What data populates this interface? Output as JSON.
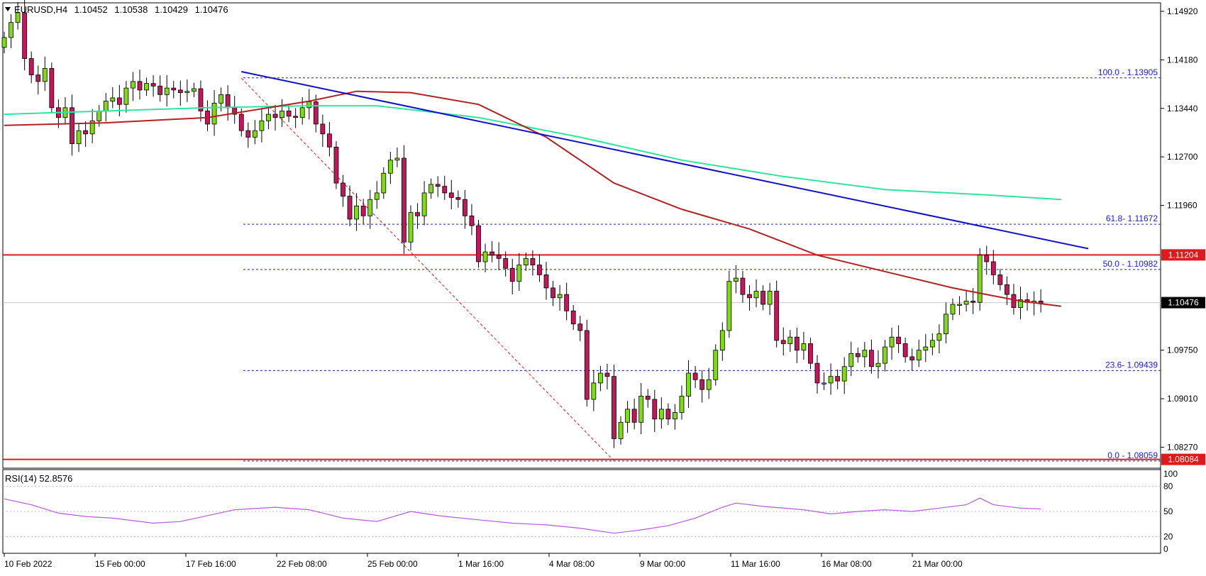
{
  "symbol_header": {
    "symbol": "EURUSD,H4",
    "open": "1.10452",
    "high": "1.10538",
    "low": "1.10429",
    "close": "1.10476"
  },
  "rsi_header": {
    "label": "RSI(14) 52.8576"
  },
  "colors": {
    "bull": "#7fdc14",
    "bear": "#c2185b",
    "ema_red": "#b22222",
    "ema_green": "#2ee59d",
    "trendline": "#1010c8",
    "fib": "#1a1adc",
    "resistance": "#e0191c",
    "rsi": "#b35ae0",
    "current_price": "#c8c8c8"
  },
  "price_axis": {
    "ticks": [
      "1.14920",
      "1.14180",
      "1.13440",
      "1.12700",
      "1.11960",
      "1.09750",
      "1.09010",
      "1.08270"
    ],
    "current_price_label": "1.10476",
    "resistance_label": "1.11204",
    "support_label": "1.08084"
  },
  "rsi_axis": {
    "ticks": [
      "100",
      "80",
      "50",
      "20",
      "0"
    ]
  },
  "time_axis": {
    "labels": [
      "10 Feb 2022",
      "15 Feb 00:00",
      "17 Feb 16:00",
      "22 Feb 08:00",
      "25 Feb 00:00",
      "1 Mar 16:00",
      "4 Mar 08:00",
      "9 Mar 00:00",
      "11 Mar 16:00",
      "16 Mar 08:00",
      "21 Mar 00:00"
    ]
  },
  "fib_labels": {
    "f100": "100.0 - 1.13905",
    "f618": "61.8- 1.11672",
    "f500": "50.0 - 1.10982",
    "f236": "23.6- 1.09439",
    "f0": "0.0 - 1.08059"
  },
  "chart_data": {
    "type": "candlestick",
    "instrument": "EURUSD",
    "timeframe": "H4",
    "y_range": [
      1.0795,
      1.1505
    ],
    "rsi_range": [
      0,
      100
    ],
    "fib_levels": [
      {
        "level": 100.0,
        "price": 1.13905
      },
      {
        "level": 61.8,
        "price": 1.11672
      },
      {
        "level": 50.0,
        "price": 1.10982
      },
      {
        "level": 23.6,
        "price": 1.09439
      },
      {
        "level": 0.0,
        "price": 1.08059
      }
    ],
    "horizontal_levels": [
      1.11204,
      1.08084
    ],
    "current_price": 1.10476,
    "rsi_value": 52.8576,
    "close_path": [
      [
        0,
        1.1452
      ],
      [
        1,
        1.1475
      ],
      [
        2,
        1.149
      ],
      [
        3,
        1.142
      ],
      [
        4,
        1.1395
      ],
      [
        5,
        1.1385
      ],
      [
        6,
        1.1405
      ],
      [
        7,
        1.1345
      ],
      [
        8,
        1.133
      ],
      [
        9,
        1.1345
      ],
      [
        10,
        1.129
      ],
      [
        11,
        1.131
      ],
      [
        12,
        1.1305
      ],
      [
        13,
        1.1325
      ],
      [
        14,
        1.134
      ],
      [
        15,
        1.1355
      ],
      [
        16,
        1.136
      ],
      [
        17,
        1.135
      ],
      [
        18,
        1.1375
      ],
      [
        19,
        1.1385
      ],
      [
        20,
        1.1372
      ],
      [
        21,
        1.1382
      ],
      [
        22,
        1.1378
      ],
      [
        23,
        1.1365
      ],
      [
        24,
        1.1375
      ],
      [
        25,
        1.1372
      ],
      [
        26,
        1.1368
      ],
      [
        27,
        1.137
      ],
      [
        28,
        1.1374
      ],
      [
        29,
        1.134
      ],
      [
        30,
        1.132
      ],
      [
        31,
        1.1352
      ],
      [
        32,
        1.1365
      ],
      [
        33,
        1.1345
      ],
      [
        34,
        1.1335
      ],
      [
        35,
        1.131
      ],
      [
        36,
        1.13
      ],
      [
        37,
        1.131
      ],
      [
        38,
        1.1325
      ],
      [
        39,
        1.1335
      ],
      [
        40,
        1.133
      ],
      [
        41,
        1.134
      ],
      [
        42,
        1.1332
      ],
      [
        43,
        1.133
      ],
      [
        44,
        1.1345
      ],
      [
        45,
        1.1354
      ],
      [
        46,
        1.132
      ],
      [
        47,
        1.1305
      ],
      [
        48,
        1.1285
      ],
      [
        49,
        1.123
      ],
      [
        50,
        1.121
      ],
      [
        51,
        1.1175
      ],
      [
        52,
        1.1195
      ],
      [
        53,
        1.118
      ],
      [
        54,
        1.1205
      ],
      [
        55,
        1.1215
      ],
      [
        56,
        1.1245
      ],
      [
        57,
        1.1265
      ],
      [
        58,
        1.1268
      ],
      [
        59,
        1.114
      ],
      [
        60,
        1.1185
      ],
      [
        61,
        1.118
      ],
      [
        62,
        1.1215
      ],
      [
        63,
        1.1228
      ],
      [
        64,
        1.1225
      ],
      [
        65,
        1.1215
      ],
      [
        66,
        1.1208
      ],
      [
        67,
        1.1205
      ],
      [
        68,
        1.118
      ],
      [
        69,
        1.1165
      ],
      [
        70,
        1.111
      ],
      [
        71,
        1.1125
      ],
      [
        72,
        1.112
      ],
      [
        73,
        1.1115
      ],
      [
        74,
        1.11
      ],
      [
        75,
        1.108
      ],
      [
        76,
        1.1105
      ],
      [
        77,
        1.1115
      ],
      [
        78,
        1.1105
      ],
      [
        79,
        1.109
      ],
      [
        80,
        1.107
      ],
      [
        81,
        1.1055
      ],
      [
        82,
        1.106
      ],
      [
        83,
        1.1035
      ],
      [
        84,
        1.1015
      ],
      [
        85,
        1.1005
      ],
      [
        86,
        1.09
      ],
      [
        87,
        1.0925
      ],
      [
        88,
        1.094
      ],
      [
        89,
        1.0935
      ],
      [
        90,
        1.084
      ],
      [
        91,
        1.0865
      ],
      [
        92,
        1.0885
      ],
      [
        93,
        1.0865
      ],
      [
        94,
        1.0905
      ],
      [
        95,
        1.09
      ],
      [
        96,
        1.087
      ],
      [
        97,
        1.0885
      ],
      [
        98,
        1.087
      ],
      [
        99,
        1.088
      ],
      [
        100,
        1.0905
      ],
      [
        101,
        1.094
      ],
      [
        102,
        1.093
      ],
      [
        103,
        1.0915
      ],
      [
        104,
        1.093
      ],
      [
        105,
        1.0975
      ],
      [
        106,
        1.1005
      ],
      [
        107,
        1.108
      ],
      [
        108,
        1.1085
      ],
      [
        109,
        1.106
      ],
      [
        110,
        1.1055
      ],
      [
        111,
        1.1065
      ],
      [
        112,
        1.1045
      ],
      [
        113,
        1.1065
      ],
      [
        114,
        1.099
      ],
      [
        115,
        1.0985
      ],
      [
        116,
        1.0995
      ],
      [
        117,
        1.0975
      ],
      [
        118,
        1.0985
      ],
      [
        119,
        1.0955
      ],
      [
        120,
        1.0925
      ],
      [
        121,
        1.0925
      ],
      [
        122,
        1.0935
      ],
      [
        123,
        1.0928
      ],
      [
        124,
        1.095
      ],
      [
        125,
        1.097
      ],
      [
        126,
        1.0965
      ],
      [
        127,
        1.0975
      ],
      [
        128,
        1.095
      ],
      [
        129,
        1.0955
      ],
      [
        130,
        1.098
      ],
      [
        131,
        1.0995
      ],
      [
        132,
        1.0985
      ],
      [
        133,
        1.0965
      ],
      [
        134,
        1.096
      ],
      [
        135,
        1.0975
      ],
      [
        136,
        1.098
      ],
      [
        137,
        1.099
      ],
      [
        138,
        1.1
      ],
      [
        139,
        1.103
      ],
      [
        140,
        1.1045
      ],
      [
        141,
        1.1045
      ],
      [
        142,
        1.105
      ],
      [
        143,
        1.1048
      ],
      [
        144,
        1.112
      ],
      [
        145,
        1.111
      ],
      [
        146,
        1.109
      ],
      [
        147,
        1.1075
      ],
      [
        148,
        1.106
      ],
      [
        149,
        1.104
      ],
      [
        150,
        1.1052
      ],
      [
        151,
        1.1048
      ],
      [
        152,
        1.105
      ],
      [
        153,
        1.1047
      ]
    ],
    "ema_red_path": [
      [
        0,
        1.1318
      ],
      [
        15,
        1.1322
      ],
      [
        30,
        1.133
      ],
      [
        45,
        1.1355
      ],
      [
        52,
        1.137
      ],
      [
        60,
        1.1368
      ],
      [
        70,
        1.135
      ],
      [
        80,
        1.13
      ],
      [
        90,
        1.123
      ],
      [
        100,
        1.119
      ],
      [
        110,
        1.116
      ],
      [
        120,
        1.112
      ],
      [
        130,
        1.1095
      ],
      [
        140,
        1.107
      ],
      [
        150,
        1.105
      ],
      [
        156,
        1.1042
      ]
    ],
    "ema_green_path": [
      [
        0,
        1.1335
      ],
      [
        15,
        1.134
      ],
      [
        30,
        1.1345
      ],
      [
        45,
        1.1348
      ],
      [
        55,
        1.1348
      ],
      [
        70,
        1.133
      ],
      [
        85,
        1.13
      ],
      [
        100,
        1.1265
      ],
      [
        115,
        1.124
      ],
      [
        130,
        1.122
      ],
      [
        145,
        1.1212
      ],
      [
        156,
        1.1205
      ]
    ],
    "trendline": [
      [
        35,
        1.14
      ],
      [
        160,
        1.113
      ]
    ],
    "fib_swing_line": [
      [
        35,
        1.139
      ],
      [
        90,
        1.0806
      ]
    ],
    "rsi_path": [
      [
        0,
        65
      ],
      [
        4,
        58
      ],
      [
        8,
        48
      ],
      [
        12,
        44
      ],
      [
        16,
        42
      ],
      [
        22,
        36
      ],
      [
        26,
        38
      ],
      [
        30,
        45
      ],
      [
        34,
        52
      ],
      [
        40,
        55
      ],
      [
        45,
        52
      ],
      [
        50,
        42
      ],
      [
        55,
        38
      ],
      [
        60,
        50
      ],
      [
        64,
        45
      ],
      [
        70,
        40
      ],
      [
        75,
        36
      ],
      [
        80,
        34
      ],
      [
        85,
        30
      ],
      [
        90,
        24
      ],
      [
        94,
        28
      ],
      [
        98,
        33
      ],
      [
        102,
        42
      ],
      [
        106,
        55
      ],
      [
        108,
        60
      ],
      [
        112,
        56
      ],
      [
        118,
        52
      ],
      [
        122,
        47
      ],
      [
        126,
        50
      ],
      [
        130,
        52
      ],
      [
        134,
        50
      ],
      [
        138,
        54
      ],
      [
        142,
        58
      ],
      [
        144,
        66
      ],
      [
        146,
        58
      ],
      [
        150,
        54
      ],
      [
        153,
        53
      ]
    ],
    "time_labels": [
      "10 Feb 2022",
      "15 Feb 00:00",
      "17 Feb 16:00",
      "22 Feb 08:00",
      "25 Feb 00:00",
      "1 Mar 16:00",
      "4 Mar 08:00",
      "9 Mar 00:00",
      "11 Mar 16:00",
      "16 Mar 08:00",
      "21 Mar 00:00"
    ]
  }
}
